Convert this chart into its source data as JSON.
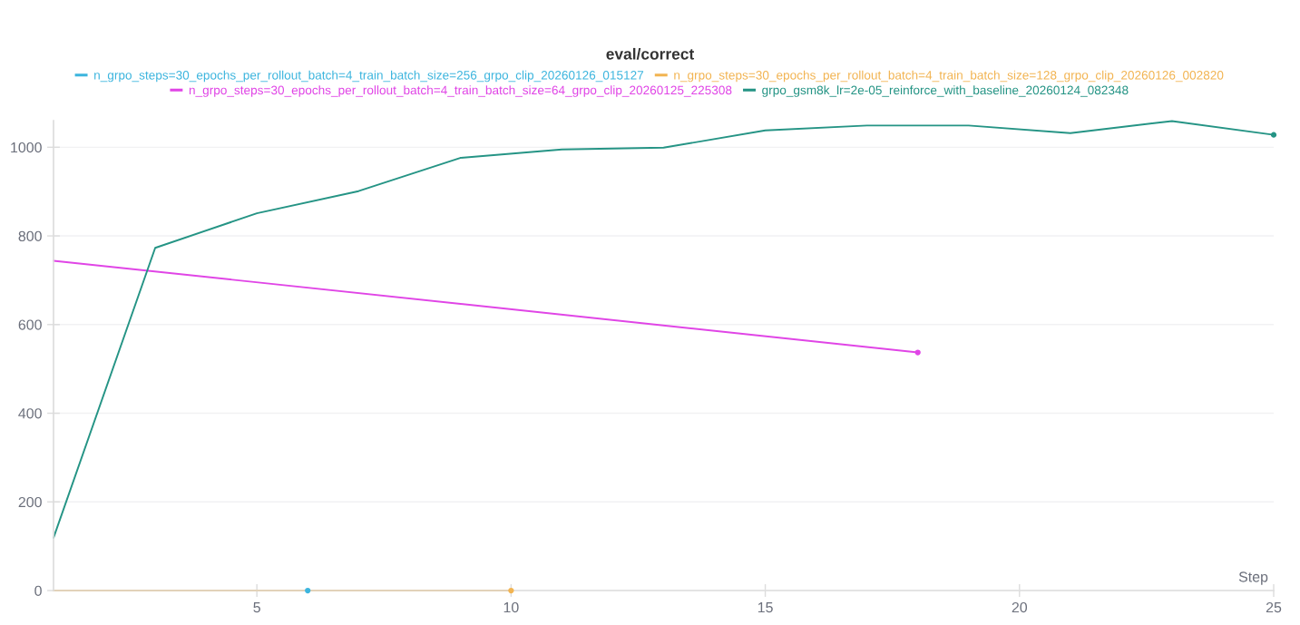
{
  "chart_data": {
    "type": "line",
    "title": "eval/correct",
    "xlabel": "Step",
    "xlim": [
      1,
      25
    ],
    "xticks": [
      5,
      10,
      15,
      20,
      25
    ],
    "ylim": [
      0,
      1060
    ],
    "yticks": [
      0,
      200,
      400,
      600,
      800,
      1000
    ],
    "grid": "y",
    "legend": "top",
    "series": [
      {
        "name": "n_grpo_steps=30_epochs_per_rollout_batch=4_train_batch_size=256_grpo_clip_20260126_015127",
        "color": "#3db5de",
        "x": [
          6
        ],
        "values": [
          0
        ],
        "marker": "circle"
      },
      {
        "name": "n_grpo_steps=30_epochs_per_rollout_batch=4_train_batch_size=128_grpo_clip_20260126_002820",
        "color": "#f2b452",
        "x": [
          1,
          10
        ],
        "values": [
          0,
          0
        ]
      },
      {
        "name": "n_grpo_steps=30_epochs_per_rollout_batch=4_train_batch_size=64_grpo_clip_20260125_225308",
        "color": "#e045e6",
        "x": [
          1,
          18
        ],
        "values": [
          744,
          537
        ]
      },
      {
        "name": "grpo_gsm8k_lr=2e-05_reinforce_with_baseline_20260124_082348",
        "color": "#259485",
        "x": [
          1,
          3,
          5,
          7,
          9,
          11,
          13,
          15,
          17,
          19,
          21,
          23,
          25
        ],
        "values": [
          119,
          773,
          851,
          901,
          976,
          995,
          999,
          1038,
          1049,
          1049,
          1032,
          1059,
          1028
        ]
      }
    ]
  }
}
